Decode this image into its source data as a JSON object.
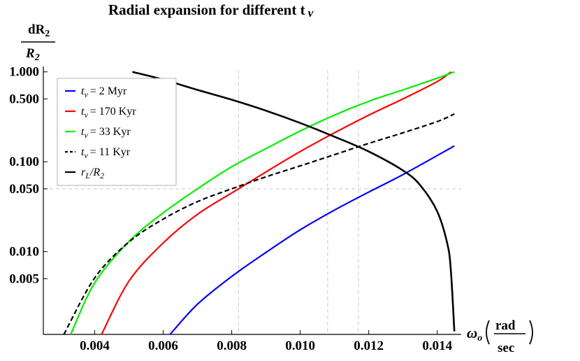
{
  "chart_data": {
    "type": "line",
    "title": "Radial expansion for different t",
    "title_subscript": "v",
    "ylabel": {
      "numerator": "dR",
      "numerator_sub": "2",
      "denominator": "R",
      "denominator_sub": "2"
    },
    "xlabel": {
      "symbol": "ω",
      "subscript": "o",
      "unit_numerator": "rad",
      "unit_denominator": "sec"
    },
    "y_scale": "log",
    "xlim": [
      0.0025,
      0.0147
    ],
    "ylim": [
      0.0012,
      1.05
    ],
    "x_ticks": [
      "0.004",
      "0.006",
      "0.008",
      "0.010",
      "0.012",
      "0.014"
    ],
    "x_tick_values": [
      0.004,
      0.006,
      0.008,
      0.01,
      0.012,
      0.014
    ],
    "y_ticks": [
      "1.000",
      "0.500",
      "0.100",
      "0.050",
      "0.010",
      "0.005"
    ],
    "y_tick_values": [
      1.0,
      0.5,
      0.1,
      0.05,
      0.01,
      0.005
    ],
    "reference_lines": {
      "x": [
        0.0082,
        0.0108,
        0.0117
      ],
      "y": [
        0.05
      ]
    },
    "legend_position": "top-left",
    "series": [
      {
        "name": "= 2 Myr",
        "label_symbol": "t",
        "label_sub": "v",
        "color": "#0000ff",
        "dash": "solid",
        "x": [
          0.0062,
          0.007,
          0.008,
          0.009,
          0.01,
          0.011,
          0.012,
          0.013,
          0.0145
        ],
        "y": [
          0.0012,
          0.0026,
          0.0053,
          0.0098,
          0.0175,
          0.029,
          0.046,
          0.072,
          0.15
        ]
      },
      {
        "name": "= 170 Kyr",
        "label_symbol": "t",
        "label_sub": "v",
        "color": "#ff0000",
        "dash": "solid",
        "x": [
          0.0042,
          0.005,
          0.006,
          0.007,
          0.008,
          0.009,
          0.01,
          0.011,
          0.012,
          0.013,
          0.014,
          0.0144
        ],
        "y": [
          0.0012,
          0.0047,
          0.0125,
          0.026,
          0.045,
          0.077,
          0.13,
          0.21,
          0.33,
          0.5,
          0.78,
          1.0
        ]
      },
      {
        "name": "= 33 Kyr",
        "label_symbol": "t",
        "label_sub": "v",
        "color": "#00ee00",
        "dash": "solid",
        "x": [
          0.0033,
          0.004,
          0.005,
          0.006,
          0.007,
          0.008,
          0.009,
          0.01,
          0.011,
          0.012,
          0.013,
          0.014,
          0.0145
        ],
        "y": [
          0.0012,
          0.0045,
          0.013,
          0.027,
          0.05,
          0.088,
          0.14,
          0.22,
          0.33,
          0.47,
          0.63,
          0.85,
          1.0
        ]
      },
      {
        "name": "= 11 Kyr",
        "label_symbol": "t",
        "label_sub": "v",
        "color": "#000000",
        "dash": "dashed",
        "x": [
          0.0031,
          0.004,
          0.005,
          0.006,
          0.007,
          0.008,
          0.009,
          0.01,
          0.011,
          0.012,
          0.013,
          0.014,
          0.0145
        ],
        "y": [
          0.0012,
          0.0051,
          0.0128,
          0.023,
          0.036,
          0.05,
          0.068,
          0.09,
          0.12,
          0.16,
          0.21,
          0.28,
          0.34
        ]
      },
      {
        "name": "/R",
        "label_symbol": "r",
        "label_sub": "L",
        "label_suffix_sub": "2",
        "color": "#000000",
        "dash": "solid-thick",
        "x": [
          0.0051,
          0.006,
          0.007,
          0.008,
          0.009,
          0.01,
          0.011,
          0.012,
          0.013,
          0.0135,
          0.014,
          0.0143,
          0.0144,
          0.0145
        ],
        "y": [
          1.0,
          0.82,
          0.63,
          0.49,
          0.37,
          0.27,
          0.19,
          0.13,
          0.08,
          0.055,
          0.028,
          0.012,
          0.006,
          0.0013
        ]
      }
    ]
  }
}
